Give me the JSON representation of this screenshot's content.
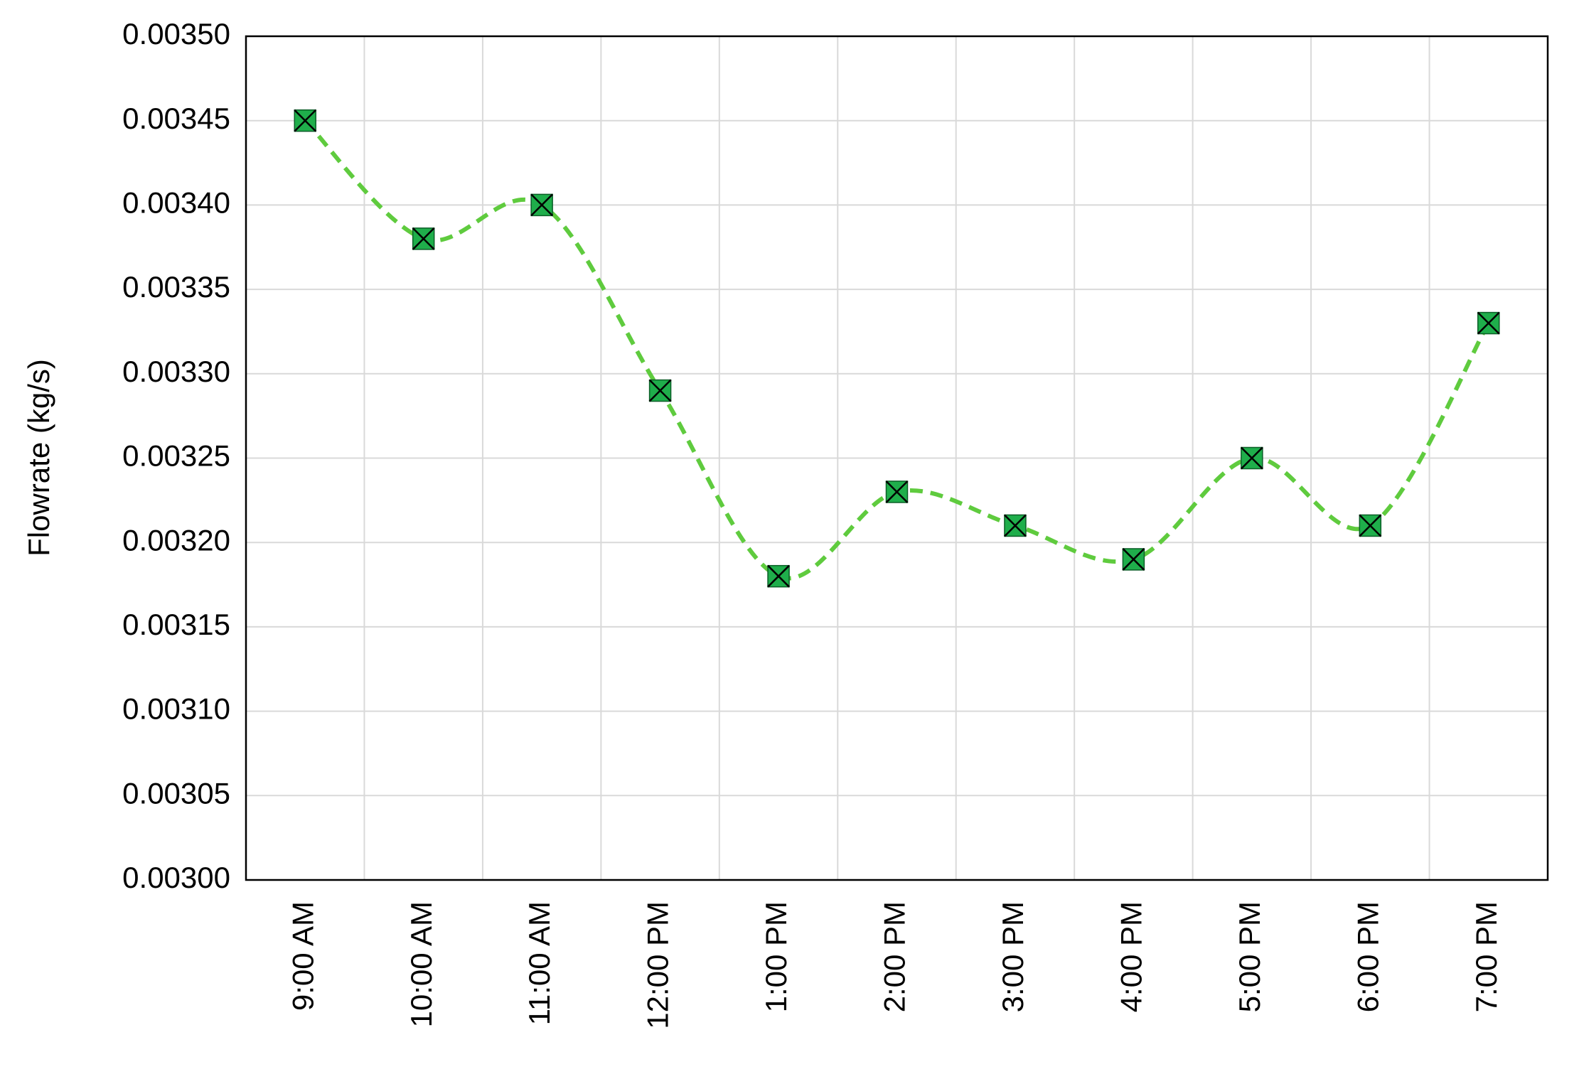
{
  "chart_data": {
    "type": "line",
    "y_label": "Flowrate (kg/s)",
    "categories": [
      "9:00 AM",
      "10:00 AM",
      "11:00 AM",
      "12:00 PM",
      "1:00 PM",
      "2:00 PM",
      "3:00 PM",
      "4:00 PM",
      "5:00 PM",
      "6:00 PM",
      "7:00 PM"
    ],
    "values": [
      0.00345,
      0.00338,
      0.0034,
      0.00329,
      0.00318,
      0.00323,
      0.00321,
      0.00319,
      0.00325,
      0.00321,
      0.00333
    ],
    "color": "#5fcb3e",
    "marker_color": "#1fae4b",
    "ylim": [
      0.003,
      0.0035
    ],
    "yticks": [
      {
        "value": 0.003,
        "label": "0.00300"
      },
      {
        "value": 0.00305,
        "label": "0.00305"
      },
      {
        "value": 0.0031,
        "label": "0.00310"
      },
      {
        "value": 0.00315,
        "label": "0.00315"
      },
      {
        "value": 0.0032,
        "label": "0.00320"
      },
      {
        "value": 0.00325,
        "label": "0.00325"
      },
      {
        "value": 0.0033,
        "label": "0.00330"
      },
      {
        "value": 0.00335,
        "label": "0.00335"
      },
      {
        "value": 0.0034,
        "label": "0.00340"
      },
      {
        "value": 0.00345,
        "label": "0.00345"
      },
      {
        "value": 0.0035,
        "label": "0.00350"
      }
    ],
    "grid": true
  }
}
